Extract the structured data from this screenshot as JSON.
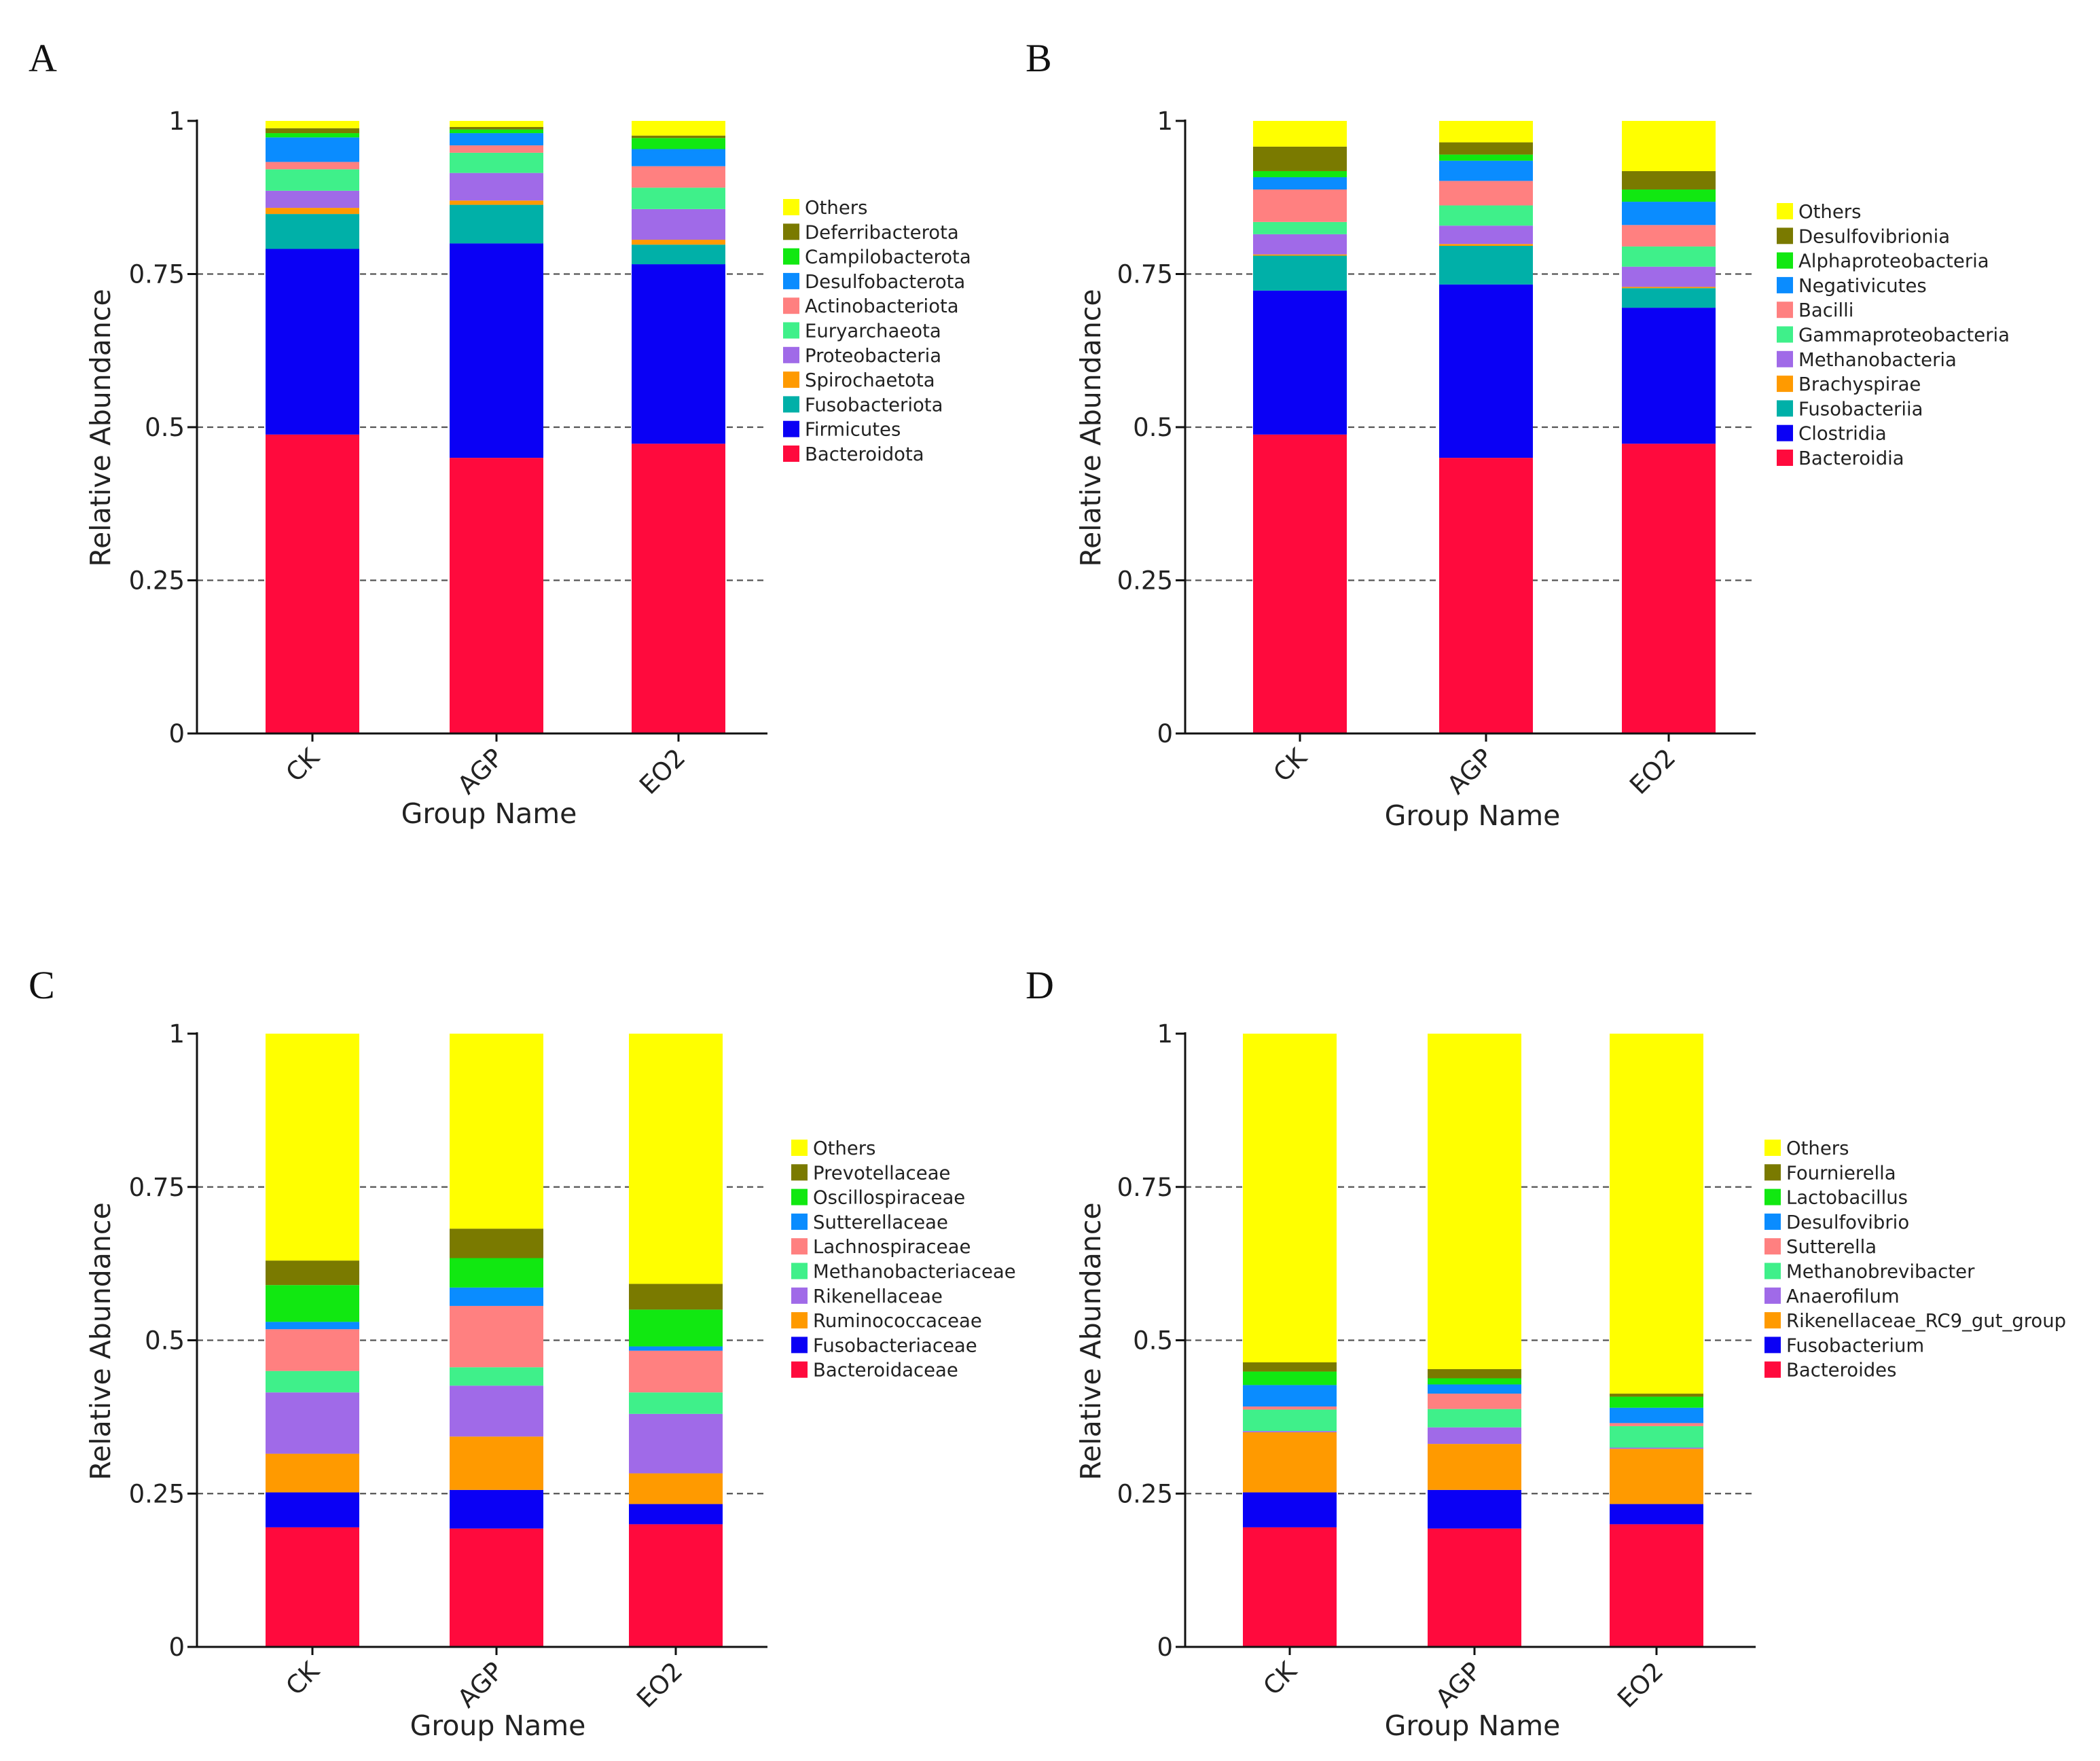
{
  "chart_data": [
    {
      "panel": "A",
      "type": "bar",
      "stacked": true,
      "xlabel": "Group Name",
      "ylabel": "Relative Abundance",
      "ylim": [
        0,
        1
      ],
      "yticks": [
        "0",
        "0.25",
        "0.5",
        "0.75",
        "1"
      ],
      "categories": [
        "CK",
        "AGP",
        "EO2"
      ],
      "grid": "dashed horizontal at 0.25, 0.5, 0.75",
      "legend_position": "right",
      "series": [
        {
          "name": "Bacteroidota",
          "color": "#ff0a3d",
          "values": [
            0.488,
            0.45,
            0.473
          ]
        },
        {
          "name": "Firmicutes",
          "color": "#0a00f5",
          "values": [
            0.303,
            0.35,
            0.293
          ]
        },
        {
          "name": "Fusobacteriota",
          "color": "#00b0a8",
          "values": [
            0.057,
            0.063,
            0.032
          ]
        },
        {
          "name": "Spirochaetota",
          "color": "#ff9a00",
          "values": [
            0.01,
            0.007,
            0.008
          ]
        },
        {
          "name": "Proteobacteria",
          "color": "#a06ae8",
          "values": [
            0.028,
            0.045,
            0.05
          ]
        },
        {
          "name": "Euryarchaeota",
          "color": "#3ff08a",
          "values": [
            0.035,
            0.033,
            0.035
          ]
        },
        {
          "name": "Actinobacteriota",
          "color": "#ff8080",
          "values": [
            0.012,
            0.012,
            0.035
          ]
        },
        {
          "name": "Desulfobacterota",
          "color": "#0a8cff",
          "values": [
            0.04,
            0.02,
            0.028
          ]
        },
        {
          "name": "Campilobacterota",
          "color": "#11e811",
          "values": [
            0.007,
            0.006,
            0.018
          ]
        },
        {
          "name": "Deferribacterota",
          "color": "#7a7a00",
          "values": [
            0.008,
            0.004,
            0.004
          ]
        },
        {
          "name": "Others",
          "color": "#ffff00",
          "values": [
            0.012,
            0.01,
            0.024
          ]
        }
      ]
    },
    {
      "panel": "B",
      "type": "bar",
      "stacked": true,
      "xlabel": "Group Name",
      "ylabel": "Relative Abundance",
      "ylim": [
        0,
        1
      ],
      "yticks": [
        "0",
        "0.25",
        "0.5",
        "0.75",
        "1"
      ],
      "categories": [
        "CK",
        "AGP",
        "EO2"
      ],
      "grid": "dashed horizontal at 0.25, 0.5, 0.75",
      "legend_position": "right",
      "series": [
        {
          "name": "Bacteroidia",
          "color": "#ff0a3d",
          "values": [
            0.488,
            0.45,
            0.473
          ]
        },
        {
          "name": "Clostridia",
          "color": "#0a00f5",
          "values": [
            0.235,
            0.283,
            0.222
          ]
        },
        {
          "name": "Fusobacteriia",
          "color": "#00b0a8",
          "values": [
            0.057,
            0.063,
            0.032
          ]
        },
        {
          "name": "Brachyspirae",
          "color": "#ff9a00",
          "values": [
            0.002,
            0.003,
            0.002
          ]
        },
        {
          "name": "Methanobacteria",
          "color": "#a06ae8",
          "values": [
            0.033,
            0.03,
            0.033
          ]
        },
        {
          "name": "Gammaproteobacteria",
          "color": "#3ff08a",
          "values": [
            0.02,
            0.033,
            0.033
          ]
        },
        {
          "name": "Bacilli",
          "color": "#ff8080",
          "values": [
            0.053,
            0.04,
            0.035
          ]
        },
        {
          "name": "Negativicutes",
          "color": "#0a8cff",
          "values": [
            0.02,
            0.033,
            0.038
          ]
        },
        {
          "name": "Alphaproteobacteria",
          "color": "#11e811",
          "values": [
            0.01,
            0.01,
            0.02
          ]
        },
        {
          "name": "Desulfovibrionia",
          "color": "#7a7a00",
          "values": [
            0.04,
            0.02,
            0.03
          ]
        },
        {
          "name": "Others",
          "color": "#ffff00",
          "values": [
            0.042,
            0.035,
            0.082
          ]
        }
      ]
    },
    {
      "panel": "C",
      "type": "bar",
      "stacked": true,
      "xlabel": "Group Name",
      "ylabel": "Relative Abundance",
      "ylim": [
        0,
        1
      ],
      "yticks": [
        "0",
        "0.25",
        "0.5",
        "0.75",
        "1"
      ],
      "categories": [
        "CK",
        "AGP",
        "EO2"
      ],
      "grid": "dashed horizontal at 0.25, 0.5, 0.75",
      "legend_position": "right",
      "series": [
        {
          "name": "Bacteroidaceae",
          "color": "#ff0a3d",
          "values": [
            0.195,
            0.193,
            0.2
          ]
        },
        {
          "name": "Fusobacteriaceae",
          "color": "#0a00f5",
          "values": [
            0.057,
            0.063,
            0.033
          ]
        },
        {
          "name": "Ruminococcaceae",
          "color": "#ff9a00",
          "values": [
            0.063,
            0.087,
            0.05
          ]
        },
        {
          "name": "Rikenellaceae",
          "color": "#a06ae8",
          "values": [
            0.1,
            0.083,
            0.097
          ]
        },
        {
          "name": "Methanobacteriaceae",
          "color": "#3ff08a",
          "values": [
            0.035,
            0.03,
            0.035
          ]
        },
        {
          "name": "Lachnospiraceae",
          "color": "#ff8080",
          "values": [
            0.068,
            0.1,
            0.068
          ]
        },
        {
          "name": "Sutterellaceae",
          "color": "#0a8cff",
          "values": [
            0.012,
            0.03,
            0.007
          ]
        },
        {
          "name": "Oscillospiraceae",
          "color": "#11e811",
          "values": [
            0.06,
            0.048,
            0.06
          ]
        },
        {
          "name": "Prevotellaceae",
          "color": "#7a7a00",
          "values": [
            0.04,
            0.048,
            0.042
          ]
        },
        {
          "name": "Others",
          "color": "#ffff00",
          "values": [
            0.37,
            0.318,
            0.408
          ]
        }
      ]
    },
    {
      "panel": "D",
      "type": "bar",
      "stacked": true,
      "xlabel": "Group Name",
      "ylabel": "Relative Abundance",
      "ylim": [
        0,
        1
      ],
      "yticks": [
        "0",
        "0.25",
        "0.5",
        "0.75",
        "1"
      ],
      "categories": [
        "CK",
        "AGP",
        "EO2"
      ],
      "grid": "dashed horizontal at 0.25, 0.5, 0.75",
      "legend_position": "right",
      "series": [
        {
          "name": "Bacteroides",
          "color": "#ff0a3d",
          "values": [
            0.195,
            0.193,
            0.2
          ]
        },
        {
          "name": "Fusobacterium",
          "color": "#0a00f5",
          "values": [
            0.057,
            0.063,
            0.033
          ]
        },
        {
          "name": "Rikenellaceae_RC9_gut_group",
          "color": "#ff9a00",
          "values": [
            0.098,
            0.075,
            0.09
          ]
        },
        {
          "name": "Anaerofilum",
          "color": "#a06ae8",
          "values": [
            0.002,
            0.027,
            0.002
          ]
        },
        {
          "name": "Methanobrevibacter",
          "color": "#3ff08a",
          "values": [
            0.035,
            0.03,
            0.035
          ]
        },
        {
          "name": "Sutterella",
          "color": "#ff8080",
          "values": [
            0.005,
            0.025,
            0.005
          ]
        },
        {
          "name": "Desulfovibrio",
          "color": "#0a8cff",
          "values": [
            0.035,
            0.015,
            0.025
          ]
        },
        {
          "name": "Lactobacillus",
          "color": "#11e811",
          "values": [
            0.022,
            0.01,
            0.018
          ]
        },
        {
          "name": "Fournierella",
          "color": "#7a7a00",
          "values": [
            0.015,
            0.015,
            0.005
          ]
        },
        {
          "name": "Others",
          "color": "#ffff00",
          "values": [
            0.536,
            0.547,
            0.587
          ]
        }
      ]
    }
  ]
}
